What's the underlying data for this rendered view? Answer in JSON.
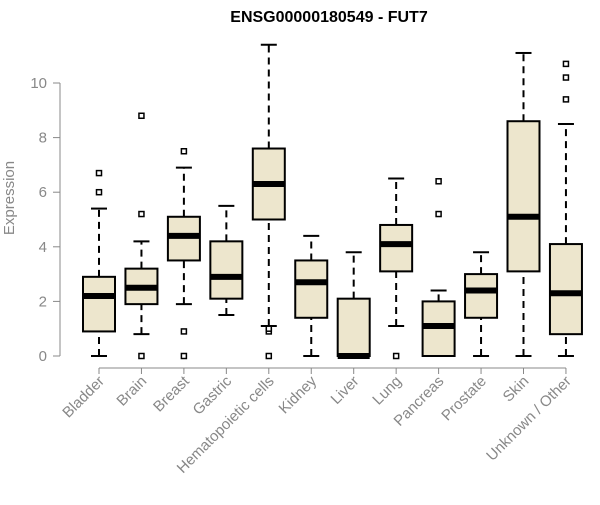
{
  "chart_data": {
    "type": "boxplot",
    "title": "ENSG00000180549 - FUT7",
    "xlabel": "",
    "ylabel": "Expression",
    "ylim": [
      0,
      11.5
    ],
    "yticks": [
      0,
      2,
      4,
      6,
      8,
      10
    ],
    "grid": false,
    "legend": "none",
    "colors": {
      "box_fill": "#ede6cd",
      "stroke": "#000000",
      "axis_text": "#888888"
    },
    "categories": [
      "Bladder",
      "Brain",
      "Breast",
      "Gastric",
      "Hematopoietic cells",
      "Kidney",
      "Liver",
      "Lung",
      "Pancreas",
      "Prostate",
      "Skin",
      "Unknown / Other"
    ],
    "boxes": [
      {
        "min": 0.0,
        "q1": 0.9,
        "median": 2.2,
        "q3": 2.9,
        "max": 5.4,
        "outliers": [
          6.0,
          6.7
        ]
      },
      {
        "min": 0.8,
        "q1": 1.9,
        "median": 2.5,
        "q3": 3.2,
        "max": 4.2,
        "outliers": [
          0.0,
          5.2,
          8.8
        ]
      },
      {
        "min": 1.9,
        "q1": 3.5,
        "median": 4.4,
        "q3": 5.1,
        "max": 6.9,
        "outliers": [
          0.0,
          0.9,
          7.5
        ]
      },
      {
        "min": 1.5,
        "q1": 2.1,
        "median": 2.9,
        "q3": 4.2,
        "max": 5.5,
        "outliers": []
      },
      {
        "min": 1.1,
        "q1": 5.0,
        "median": 6.3,
        "q3": 7.6,
        "max": 11.4,
        "outliers": [
          0.0,
          0.9,
          1.0
        ]
      },
      {
        "min": 0.0,
        "q1": 1.4,
        "median": 2.7,
        "q3": 3.5,
        "max": 4.4,
        "outliers": []
      },
      {
        "min": 0.0,
        "q1": 0.0,
        "median": 0.0,
        "q3": 2.1,
        "max": 3.8,
        "outliers": []
      },
      {
        "min": 1.1,
        "q1": 3.1,
        "median": 4.1,
        "q3": 4.8,
        "max": 6.5,
        "outliers": [
          0.0
        ]
      },
      {
        "min": 0.0,
        "q1": 0.0,
        "median": 1.1,
        "q3": 2.0,
        "max": 2.4,
        "outliers": [
          5.2,
          6.4
        ]
      },
      {
        "min": 0.0,
        "q1": 1.4,
        "median": 2.4,
        "q3": 3.0,
        "max": 3.8,
        "outliers": []
      },
      {
        "min": 0.0,
        "q1": 3.1,
        "median": 5.1,
        "q3": 8.6,
        "max": 11.1,
        "outliers": []
      },
      {
        "min": 0.0,
        "q1": 0.8,
        "median": 2.3,
        "q3": 4.1,
        "max": 8.5,
        "outliers": [
          9.4,
          10.2,
          10.7
        ]
      }
    ]
  }
}
